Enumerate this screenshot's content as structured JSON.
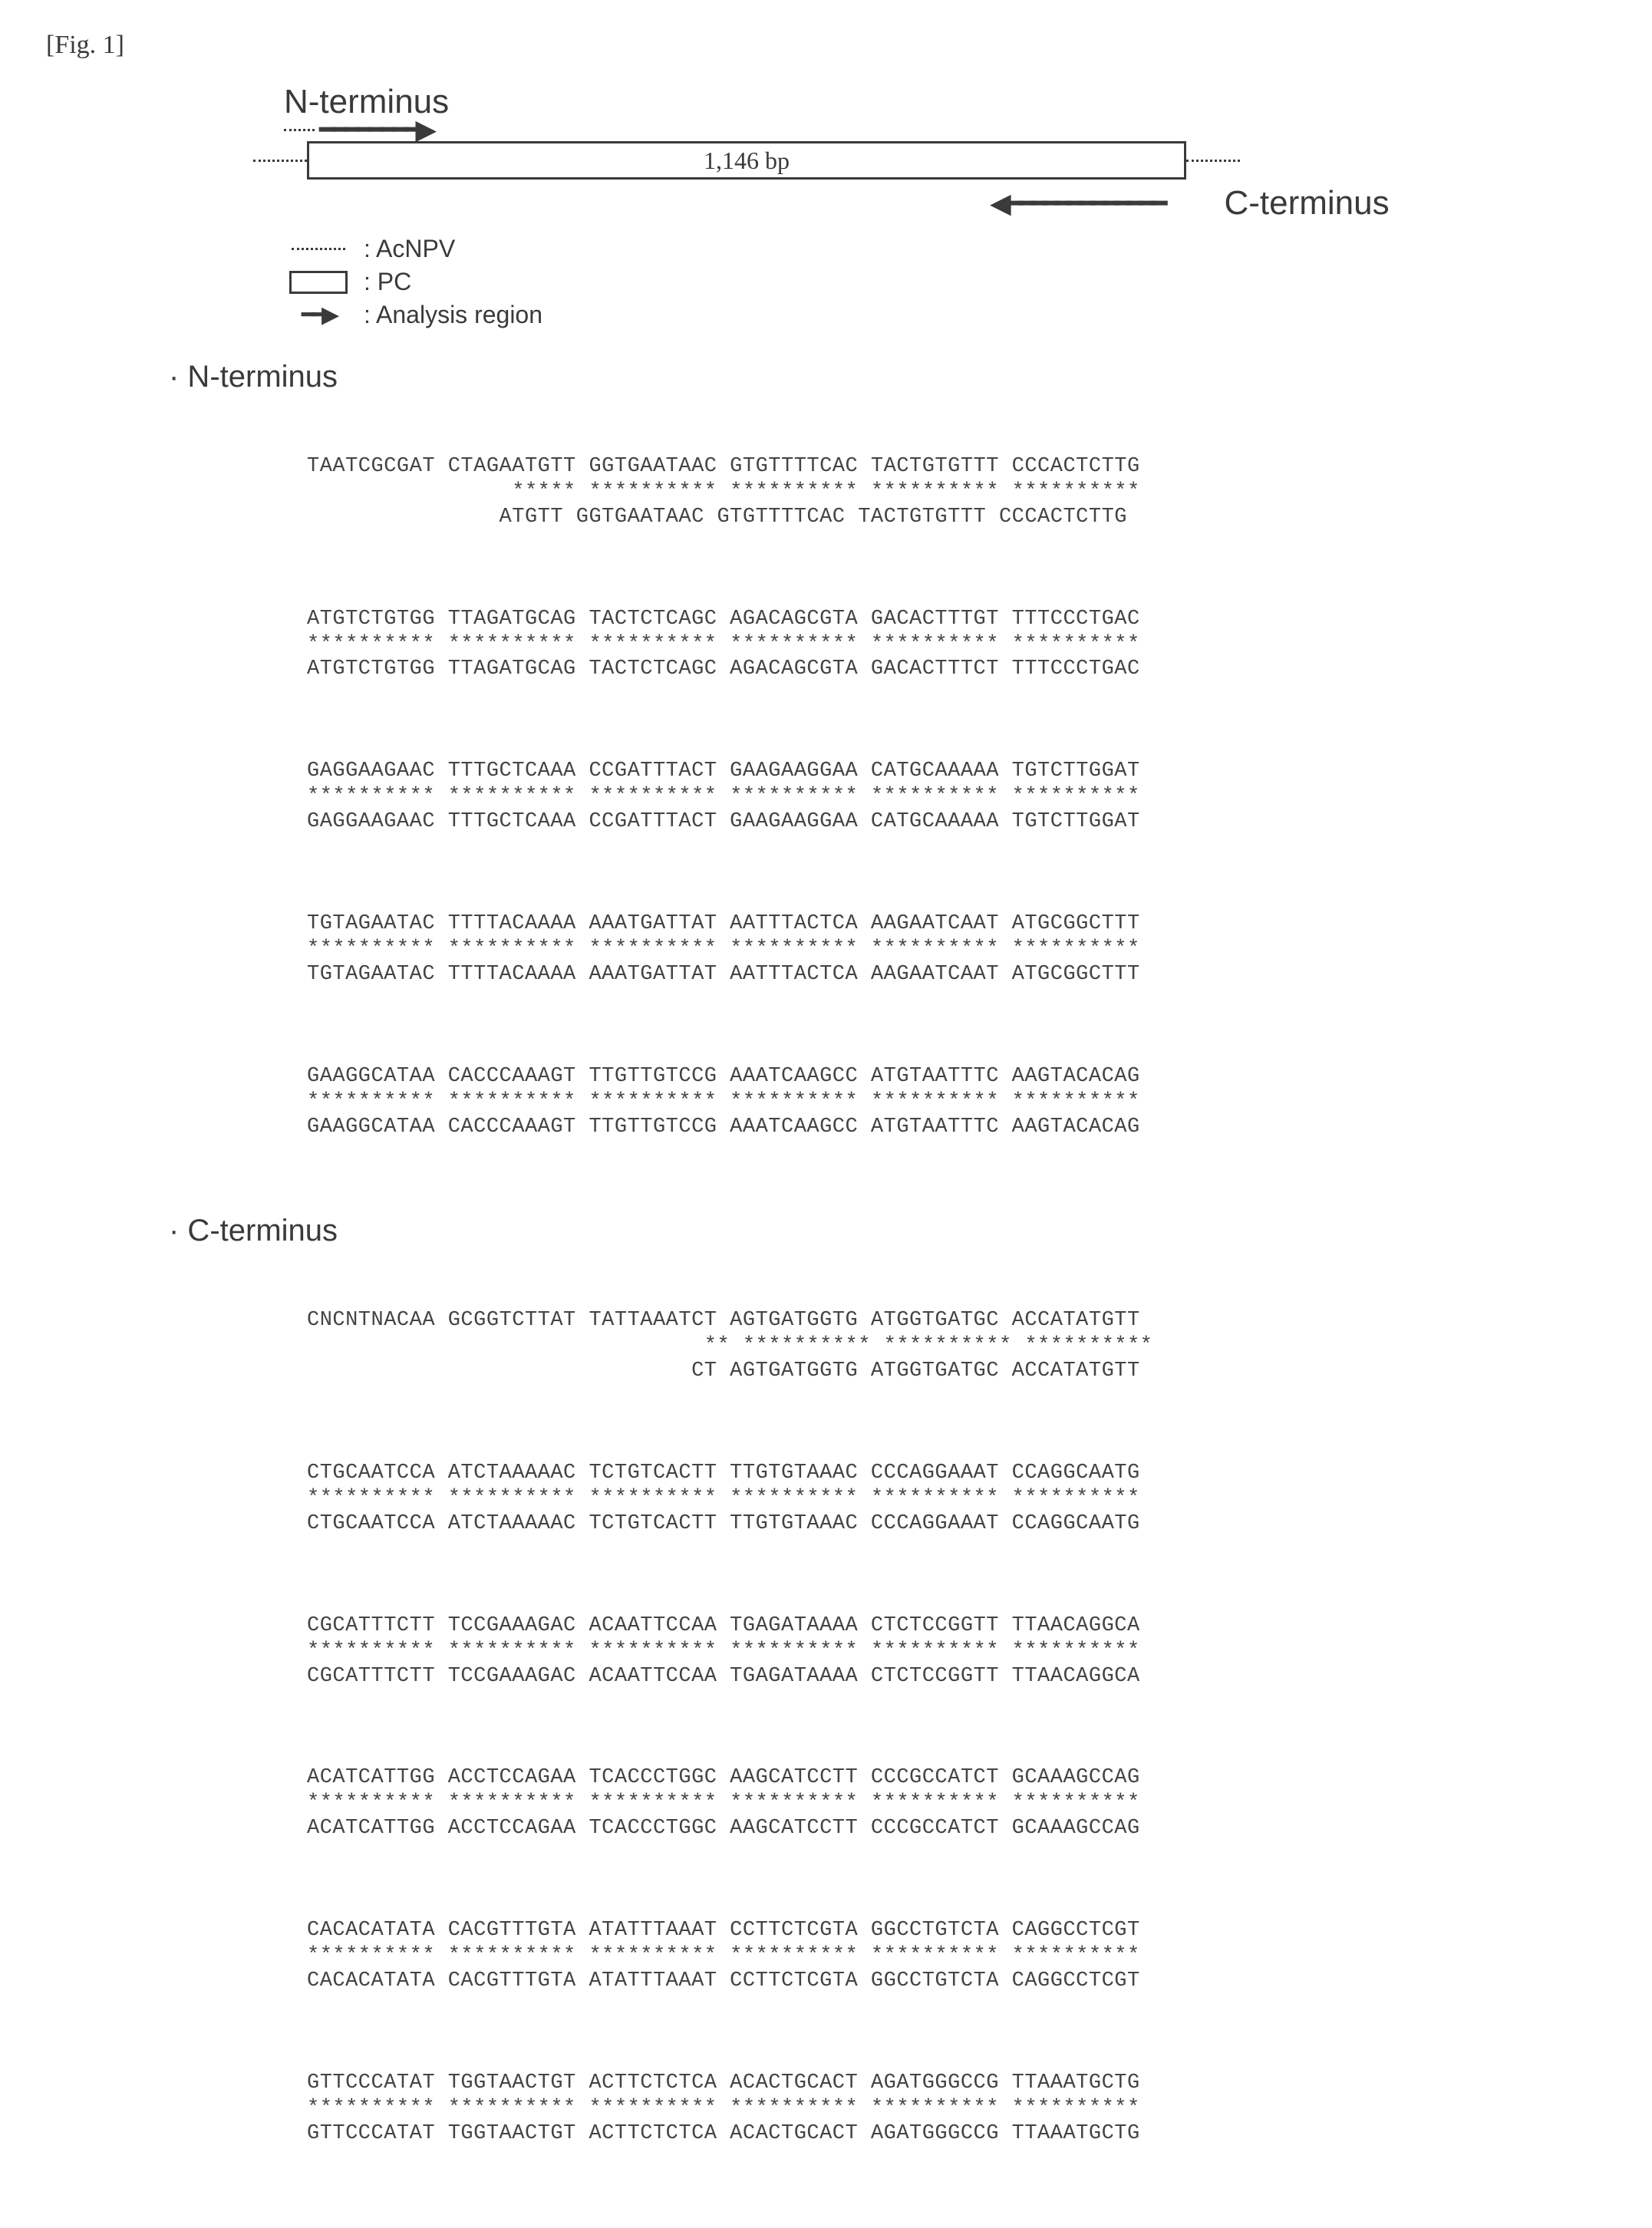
{
  "figure_label": "[Fig. 1]",
  "diagram": {
    "n_terminus_label": "N-terminus",
    "c_terminus_label": "C-terminus",
    "gene_length_label": "1,146 bp",
    "legend": {
      "acnpv": ":  AcNPV",
      "pc": ":  PC",
      "analysis": ":  Analysis region"
    }
  },
  "n_terminus": {
    "header": "· N-terminus",
    "blocks": [
      {
        "top": "TAATCGCGAT CTAGAATGTT GGTGAATAAC GTGTTTTCAC TACTGTGTTT CCCACTCTTG",
        "stars": "                ***** ********** ********** ********** **********",
        "bottom": "               ATGTT GGTGAATAAC GTGTTTTCAC TACTGTGTTT CCCACTCTTG"
      },
      {
        "top": "ATGTCTGTGG TTAGATGCAG TACTCTCAGC AGACAGCGTA GACACTTTGT TTTCCCTGAC",
        "stars": "********** ********** ********** ********** ********** **********",
        "bottom": "ATGTCTGTGG TTAGATGCAG TACTCTCAGC AGACAGCGTA GACACTTTCT TTTCCCTGAC"
      },
      {
        "top": "GAGGAAGAAC TTTGCTCAAA CCGATTTACT GAAGAAGGAA CATGCAAAAA TGTCTTGGAT",
        "stars": "********** ********** ********** ********** ********** **********",
        "bottom": "GAGGAAGAAC TTTGCTCAAA CCGATTTACT GAAGAAGGAA CATGCAAAAA TGTCTTGGAT"
      },
      {
        "top": "TGTAGAATAC TTTTACAAAA AAATGATTAT AATTTACTCA AAGAATCAAT ATGCGGCTTT",
        "stars": "********** ********** ********** ********** ********** **********",
        "bottom": "TGTAGAATAC TTTTACAAAA AAATGATTAT AATTTACTCA AAGAATCAAT ATGCGGCTTT"
      },
      {
        "top": "GAAGGCATAA CACCCAAAGT TTGTTGTCCG AAATCAAGCC ATGTAATTTC AAGTACACAG",
        "stars": "********** ********** ********** ********** ********** **********",
        "bottom": "GAAGGCATAA CACCCAAAGT TTGTTGTCCG AAATCAAGCC ATGTAATTTC AAGTACACAG"
      }
    ]
  },
  "c_terminus": {
    "header": "· C-terminus",
    "blocks": [
      {
        "top": "CNCNTNACAA GCGGTCTTAT TATTAAATCT AGTGATGGTG ATGGTGATGC ACCATATGTT",
        "stars": "                               ** ********** ********** **********",
        "bottom": "                              CT AGTGATGGTG ATGGTGATGC ACCATATGTT"
      },
      {
        "top": "CTGCAATCCA ATCTAAAAAC TCTGTCACTT TTGTGTAAAC CCCAGGAAAT CCAGGCAATG",
        "stars": "********** ********** ********** ********** ********** **********",
        "bottom": "CTGCAATCCA ATCTAAAAAC TCTGTCACTT TTGTGTAAAC CCCAGGAAAT CCAGGCAATG"
      },
      {
        "top": "CGCATTTCTT TCCGAAAGAC ACAATTCCAA TGAGATAAAA CTCTCCGGTT TTAACAGGCA",
        "stars": "********** ********** ********** ********** ********** **********",
        "bottom": "CGCATTTCTT TCCGAAAGAC ACAATTCCAA TGAGATAAAA CTCTCCGGTT TTAACAGGCA"
      },
      {
        "top": "ACATCATTGG ACCTCCAGAA TCACCCTGGC AAGCATCCTT CCCGCCATCT GCAAAGCCAG",
        "stars": "********** ********** ********** ********** ********** **********",
        "bottom": "ACATCATTGG ACCTCCAGAA TCACCCTGGC AAGCATCCTT CCCGCCATCT GCAAAGCCAG"
      },
      {
        "top": "CACACATATA CACGTTTGTA ATATTTAAAT CCTTCTCGTA GGCCTGTCTA CAGGCCTCGT",
        "stars": "********** ********** ********** ********** ********** **********",
        "bottom": "CACACATATA CACGTTTGTA ATATTTAAAT CCTTCTCGTA GGCCTGTCTA CAGGCCTCGT"
      },
      {
        "top": "GTTCCCATAT TGGTAACTGT ACTTCTCTCA ACACTGCACT AGATGGGCCG TTAAATGCTG",
        "stars": "********** ********** ********** ********** ********** **********",
        "bottom": "GTTCCCATAT TGGTAACTGT ACTTCTCTCA ACACTGCACT AGATGGGCCG TTAAATGCTG"
      }
    ]
  }
}
